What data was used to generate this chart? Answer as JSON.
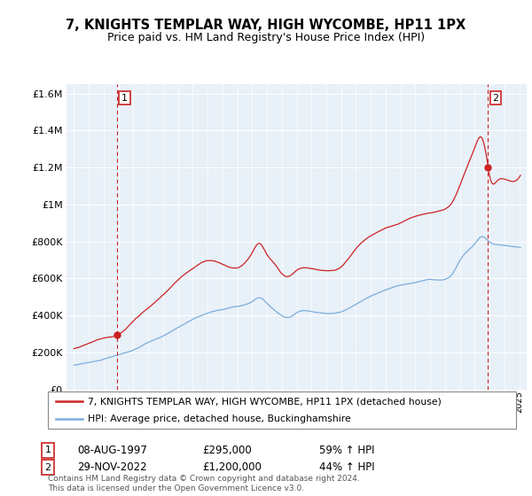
{
  "title": "7, KNIGHTS TEMPLAR WAY, HIGH WYCOMBE, HP11 1PX",
  "subtitle": "Price paid vs. HM Land Registry's House Price Index (HPI)",
  "legend_line1": "7, KNIGHTS TEMPLAR WAY, HIGH WYCOMBE, HP11 1PX (detached house)",
  "legend_line2": "HPI: Average price, detached house, Buckinghamshire",
  "transaction1_date": "08-AUG-1997",
  "transaction1_price": "£295,000",
  "transaction1_hpi": "59% ↑ HPI",
  "transaction1_year": 1997.9,
  "transaction1_value": 295000,
  "transaction2_date": "29-NOV-2022",
  "transaction2_price": "£1,200,000",
  "transaction2_hpi": "44% ↑ HPI",
  "transaction2_year": 2022.9,
  "transaction2_value": 1200000,
  "hpi_color": "#7aaddc",
  "price_color": "#cc2222",
  "vline_color": "#cc2222",
  "dot_color": "#cc2222",
  "plot_bg_color": "#e8f0f8",
  "background_color": "#ffffff",
  "grid_color": "#ffffff",
  "ylim": [
    0,
    1650000
  ],
  "xlim": [
    1994.5,
    2025.5
  ],
  "footer": "Contains HM Land Registry data © Crown copyright and database right 2024.\nThis data is licensed under the Open Government Licence v3.0."
}
